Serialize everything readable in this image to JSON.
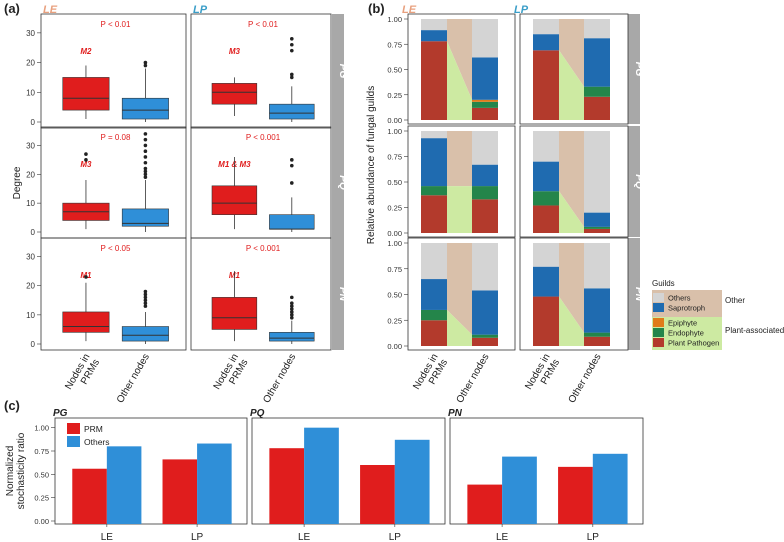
{
  "panel_labels": {
    "a": "(a)",
    "b": "(b)",
    "c": "(c)"
  },
  "colors": {
    "prm_red": "#e01d1d",
    "others_blue": "#2f8fd8",
    "facet_gray": "#a8a8a8",
    "le_title": "#e8a07e",
    "lp_title": "#3a9ec8",
    "pval_red": "#e01d1d",
    "guild_others": "#d4d4d4",
    "guild_saprotroph": "#1f6bb0",
    "guild_epiphyte": "#e07b1a",
    "guild_endophyte": "#24854a",
    "guild_plant_pathogen": "#b33a2c",
    "legend_other_bg": "#d9c0aa",
    "legend_plant_bg": "#cdeaa2",
    "flow_other": "#d9c0aa",
    "flow_plant": "#cdeaa2"
  },
  "chart_data": [
    {
      "id": "a",
      "type": "boxplot",
      "columns": [
        "LE",
        "LP"
      ],
      "rows": [
        "PG",
        "PQ",
        "PN"
      ],
      "categories": [
        "Nodes in PRMs",
        "Other nodes"
      ],
      "ylabel": "Degree",
      "ylim": [
        0,
        35
      ],
      "yticks": [
        0,
        10,
        20,
        30
      ],
      "facets": [
        {
          "column": "LE",
          "row": "PG",
          "p_text": "P < 0.01",
          "module_label": "M2",
          "boxes": [
            {
              "q1": 4,
              "median": 8,
              "q3": 15,
              "lo": 1,
              "hi": 19,
              "outliers": []
            },
            {
              "q1": 1,
              "median": 4,
              "q3": 8,
              "lo": 0,
              "hi": 18,
              "outliers": [
                19,
                20
              ]
            }
          ]
        },
        {
          "column": "LP",
          "row": "PG",
          "p_text": "P < 0.01",
          "module_label": "M3",
          "boxes": [
            {
              "q1": 6,
              "median": 10,
              "q3": 13,
              "lo": 2,
              "hi": 15,
              "outliers": []
            },
            {
              "q1": 1,
              "median": 3,
              "q3": 6,
              "lo": 0,
              "hi": 12,
              "outliers": [
                15,
                16,
                24,
                26,
                28
              ]
            }
          ]
        },
        {
          "column": "LE",
          "row": "PQ",
          "p_text": "P = 0.08",
          "module_label": "M3",
          "boxes": [
            {
              "q1": 4,
              "median": 7,
              "q3": 10,
              "lo": 1,
              "hi": 18,
              "outliers": [
                25,
                27
              ]
            },
            {
              "q1": 2,
              "median": 3,
              "q3": 8,
              "lo": 0,
              "hi": 18,
              "outliers": [
                19,
                20,
                21,
                22,
                24,
                26,
                28,
                30,
                32,
                34
              ]
            }
          ]
        },
        {
          "column": "LP",
          "row": "PQ",
          "p_text": "P < 0.001",
          "module_label": "M1 & M3",
          "boxes": [
            {
              "q1": 6,
              "median": 10,
              "q3": 16,
              "lo": 1,
              "hi": 26,
              "outliers": []
            },
            {
              "q1": 1,
              "median": 1,
              "q3": 6,
              "lo": 0,
              "hi": 12,
              "outliers": [
                17,
                23,
                25
              ]
            }
          ]
        },
        {
          "column": "LE",
          "row": "PN",
          "p_text": "P < 0.05",
          "module_label": "M1",
          "boxes": [
            {
              "q1": 4,
              "median": 6,
              "q3": 11,
              "lo": 1,
              "hi": 21,
              "outliers": [
                23
              ]
            },
            {
              "q1": 1,
              "median": 3,
              "q3": 6,
              "lo": 0,
              "hi": 11,
              "outliers": [
                13,
                14,
                15,
                16,
                17,
                18
              ]
            }
          ]
        },
        {
          "column": "LP",
          "row": "PN",
          "p_text": "P < 0.001",
          "module_label": "M1",
          "boxes": [
            {
              "q1": 5,
              "median": 9,
              "q3": 16,
              "lo": 1,
              "hi": 25,
              "outliers": []
            },
            {
              "q1": 1,
              "median": 2,
              "q3": 4,
              "lo": 0,
              "hi": 8,
              "outliers": [
                9,
                10,
                11,
                12,
                13,
                14,
                16
              ]
            }
          ]
        }
      ]
    },
    {
      "id": "b",
      "type": "stacked_bar",
      "columns": [
        "LE",
        "LP"
      ],
      "rows": [
        "PG",
        "PQ",
        "PN"
      ],
      "categories": [
        "Nodes in PRMs",
        "Other nodes"
      ],
      "ylabel": "Relative abundance of fungal guilds",
      "ylim": [
        0,
        1
      ],
      "yticks": [
        "0.00",
        "0.25",
        "0.50",
        "0.75",
        "1.00"
      ],
      "series_order": [
        "Plant Pathogen",
        "Endophyte",
        "Epiphyte",
        "Saprotroph",
        "Others"
      ],
      "facets": [
        {
          "column": "LE",
          "row": "PG",
          "bars": [
            [
              0.78,
              0.0,
              0.0,
              0.11,
              0.11
            ],
            [
              0.12,
              0.06,
              0.02,
              0.42,
              0.38
            ]
          ]
        },
        {
          "column": "LP",
          "row": "PG",
          "bars": [
            [
              0.69,
              0.0,
              0.0,
              0.16,
              0.15
            ],
            [
              0.23,
              0.1,
              0.0,
              0.48,
              0.19
            ]
          ]
        },
        {
          "column": "LE",
          "row": "PQ",
          "bars": [
            [
              0.37,
              0.09,
              0.0,
              0.47,
              0.07
            ],
            [
              0.33,
              0.13,
              0.0,
              0.21,
              0.33
            ]
          ]
        },
        {
          "column": "LP",
          "row": "PQ",
          "bars": [
            [
              0.27,
              0.14,
              0.0,
              0.29,
              0.3
            ],
            [
              0.04,
              0.02,
              0.0,
              0.14,
              0.8
            ]
          ]
        },
        {
          "column": "LE",
          "row": "PN",
          "bars": [
            [
              0.25,
              0.1,
              0.0,
              0.3,
              0.35
            ],
            [
              0.08,
              0.03,
              0.0,
              0.43,
              0.46
            ]
          ]
        },
        {
          "column": "LP",
          "row": "PN",
          "bars": [
            [
              0.48,
              0.0,
              0.0,
              0.29,
              0.23
            ],
            [
              0.09,
              0.04,
              0.0,
              0.43,
              0.44
            ]
          ]
        }
      ],
      "legend": {
        "title": "Guilds",
        "groups": [
          {
            "label": "Other",
            "items": [
              "Others",
              "Saprotroph"
            ]
          },
          {
            "label": "Plant-associated",
            "items": [
              "Epiphyte",
              "Endophyte",
              "Plant Pathogen"
            ]
          }
        ]
      }
    },
    {
      "id": "c",
      "type": "bar",
      "facets_label": [
        "PG",
        "PQ",
        "PN"
      ],
      "categories": [
        "LE",
        "LP"
      ],
      "series": [
        {
          "name": "PRM",
          "facet_values": [
            [
              0.56,
              0.66
            ],
            [
              0.78,
              0.6
            ],
            [
              0.39,
              0.58
            ]
          ]
        },
        {
          "name": "Others",
          "facet_values": [
            [
              0.8,
              0.83
            ],
            [
              1.0,
              0.87
            ],
            [
              0.69,
              0.72
            ]
          ]
        }
      ],
      "ylabel": "Normalized stochasticity ratio",
      "ylim": [
        0,
        1.05
      ],
      "yticks": [
        "0.00",
        "0.25",
        "0.50",
        "0.75",
        "1.00"
      ],
      "legend": [
        "PRM",
        "Others"
      ]
    }
  ]
}
